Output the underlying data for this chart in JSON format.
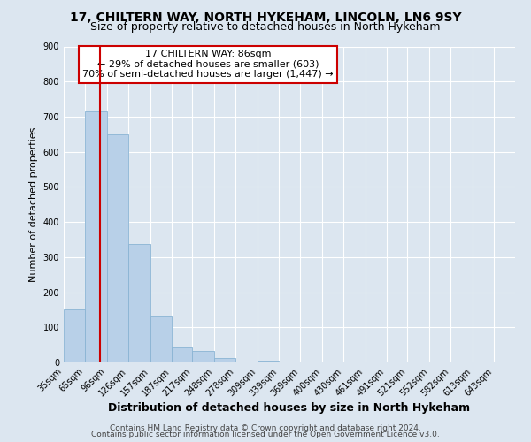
{
  "title": "17, CHILTERN WAY, NORTH HYKEHAM, LINCOLN, LN6 9SY",
  "subtitle": "Size of property relative to detached houses in North Hykeham",
  "bar_heights": [
    150,
    715,
    650,
    338,
    130,
    42,
    32,
    12,
    0,
    5,
    0,
    0,
    0,
    0,
    0,
    0,
    0,
    0,
    0,
    0
  ],
  "bin_labels": [
    "35sqm",
    "65sqm",
    "96sqm",
    "126sqm",
    "157sqm",
    "187sqm",
    "217sqm",
    "248sqm",
    "278sqm",
    "309sqm",
    "339sqm",
    "369sqm",
    "400sqm",
    "430sqm",
    "461sqm",
    "491sqm",
    "521sqm",
    "552sqm",
    "582sqm",
    "613sqm",
    "643sqm"
  ],
  "bar_color": "#b8d0e8",
  "bar_edge_color": "#8ab4d4",
  "bin_edges": [
    35,
    65,
    96,
    126,
    157,
    187,
    217,
    248,
    278,
    309,
    339,
    369,
    400,
    430,
    461,
    491,
    521,
    552,
    582,
    613,
    643
  ],
  "property_line_x": 86,
  "property_line_color": "#cc0000",
  "ylim": [
    0,
    900
  ],
  "yticks": [
    0,
    100,
    200,
    300,
    400,
    500,
    600,
    700,
    800,
    900
  ],
  "ylabel": "Number of detached properties",
  "xlabel": "Distribution of detached houses by size in North Hykeham",
  "annotation_title": "17 CHILTERN WAY: 86sqm",
  "annotation_line1": "← 29% of detached houses are smaller (603)",
  "annotation_line2": "70% of semi-detached houses are larger (1,447) →",
  "annotation_box_color": "#ffffff",
  "annotation_box_edge_color": "#cc0000",
  "background_color": "#dce6f0",
  "plot_bg_color": "#dce6f0",
  "footer_line1": "Contains HM Land Registry data © Crown copyright and database right 2024.",
  "footer_line2": "Contains public sector information licensed under the Open Government Licence v3.0.",
  "title_fontsize": 10,
  "subtitle_fontsize": 9,
  "xlabel_fontsize": 9,
  "ylabel_fontsize": 8,
  "tick_fontsize": 7,
  "annotation_fontsize": 8,
  "footer_fontsize": 6.5
}
